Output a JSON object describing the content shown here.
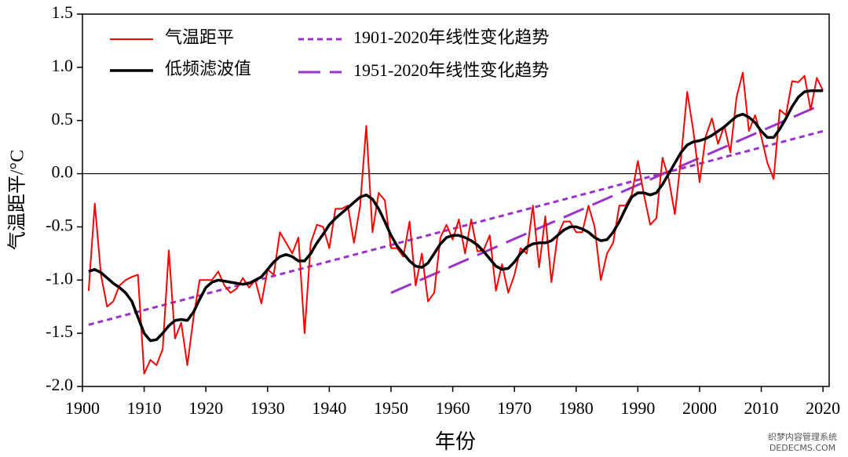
{
  "chart_data": {
    "type": "line",
    "xlabel": "年份",
    "ylabel": "气温距平/°C",
    "xlim": [
      1900,
      2021
    ],
    "ylim": [
      -2.0,
      1.5
    ],
    "xticks": [
      1900,
      1910,
      1920,
      1930,
      1940,
      1950,
      1960,
      1970,
      1980,
      1990,
      2000,
      2010,
      2020
    ],
    "yticks": [
      1.5,
      {
        "value": 1.0,
        "label": "1.0"
      },
      0.5,
      {
        "value": 0.0,
        "label": "0.0"
      },
      -0.5,
      {
        "value": -1.0,
        "label": "-1.0"
      },
      -1.5,
      {
        "value": -2.0,
        "label": "-2.0"
      }
    ],
    "zero_line": true,
    "legend": "upper left",
    "x": [
      1901,
      1902,
      1903,
      1904,
      1905,
      1906,
      1907,
      1908,
      1909,
      1910,
      1911,
      1912,
      1913,
      1914,
      1915,
      1916,
      1917,
      1918,
      1919,
      1920,
      1921,
      1922,
      1923,
      1924,
      1925,
      1926,
      1927,
      1928,
      1929,
      1930,
      1931,
      1932,
      1933,
      1934,
      1935,
      1936,
      1937,
      1938,
      1939,
      1940,
      1941,
      1942,
      1943,
      1944,
      1945,
      1946,
      1947,
      1948,
      1949,
      1950,
      1951,
      1952,
      1953,
      1954,
      1955,
      1956,
      1957,
      1958,
      1959,
      1960,
      1961,
      1962,
      1963,
      1964,
      1965,
      1966,
      1967,
      1968,
      1969,
      1970,
      1971,
      1972,
      1973,
      1974,
      1975,
      1976,
      1977,
      1978,
      1979,
      1980,
      1981,
      1982,
      1983,
      1984,
      1985,
      1986,
      1987,
      1988,
      1989,
      1990,
      1991,
      1992,
      1993,
      1994,
      1995,
      1996,
      1997,
      1998,
      1999,
      2000,
      2001,
      2002,
      2003,
      2004,
      2005,
      2006,
      2007,
      2008,
      2009,
      2010,
      2011,
      2012,
      2013,
      2014,
      2015,
      2016,
      2017,
      2018,
      2019,
      2020
    ],
    "series": [
      {
        "name": "气温距平",
        "color": "#ff0000",
        "width": 2,
        "values": [
          -1.1,
          -0.28,
          -0.95,
          -1.25,
          -1.2,
          -1.05,
          -1.0,
          -0.97,
          -0.95,
          -1.88,
          -1.75,
          -1.8,
          -1.65,
          -0.72,
          -1.55,
          -1.4,
          -1.8,
          -1.35,
          -1.0,
          -1.0,
          -1.0,
          -0.92,
          -1.05,
          -1.12,
          -1.08,
          -0.98,
          -1.07,
          -1.0,
          -1.22,
          -0.9,
          -0.95,
          -0.55,
          -0.65,
          -0.75,
          -0.6,
          -1.5,
          -0.65,
          -0.48,
          -0.5,
          -0.7,
          -0.33,
          -0.33,
          -0.3,
          -0.65,
          -0.3,
          0.45,
          -0.55,
          -0.18,
          -0.25,
          -0.7,
          -0.7,
          -0.78,
          -0.45,
          -1.05,
          -0.75,
          -1.2,
          -1.12,
          -0.6,
          -0.48,
          -0.62,
          -0.43,
          -0.75,
          -0.43,
          -0.73,
          -0.72,
          -0.58,
          -1.1,
          -0.85,
          -1.12,
          -0.95,
          -0.7,
          -0.75,
          -0.3,
          -0.88,
          -0.4,
          -1.02,
          -0.58,
          -0.45,
          -0.45,
          -0.55,
          -0.55,
          -0.3,
          -0.5,
          -1.0,
          -0.75,
          -0.65,
          -0.3,
          -0.3,
          -0.2,
          0.12,
          -0.2,
          -0.48,
          -0.42,
          0.15,
          -0.05,
          -0.38,
          0.15,
          0.77,
          0.4,
          -0.08,
          0.35,
          0.52,
          0.28,
          0.45,
          0.2,
          0.72,
          0.95,
          0.4,
          0.55,
          0.35,
          0.1,
          -0.05,
          0.6,
          0.55,
          0.87,
          0.86,
          0.92,
          0.6,
          0.9,
          0.78
        ]
      },
      {
        "name": "低频滤波值",
        "color": "#000000",
        "width": 3.5,
        "values": [
          -0.92,
          -0.9,
          -0.93,
          -0.98,
          -1.03,
          -1.07,
          -1.12,
          -1.2,
          -1.35,
          -1.5,
          -1.57,
          -1.56,
          -1.5,
          -1.43,
          -1.38,
          -1.37,
          -1.38,
          -1.3,
          -1.18,
          -1.07,
          -1.02,
          -1.0,
          -1.01,
          -1.02,
          -1.03,
          -1.04,
          -1.03,
          -1.0,
          -0.97,
          -0.9,
          -0.83,
          -0.78,
          -0.76,
          -0.78,
          -0.82,
          -0.82,
          -0.75,
          -0.65,
          -0.57,
          -0.48,
          -0.42,
          -0.37,
          -0.32,
          -0.27,
          -0.22,
          -0.2,
          -0.24,
          -0.33,
          -0.45,
          -0.58,
          -0.68,
          -0.75,
          -0.82,
          -0.87,
          -0.88,
          -0.84,
          -0.75,
          -0.66,
          -0.6,
          -0.58,
          -0.58,
          -0.6,
          -0.63,
          -0.67,
          -0.73,
          -0.8,
          -0.87,
          -0.9,
          -0.89,
          -0.83,
          -0.75,
          -0.69,
          -0.66,
          -0.65,
          -0.65,
          -0.63,
          -0.58,
          -0.53,
          -0.5,
          -0.5,
          -0.52,
          -0.55,
          -0.6,
          -0.63,
          -0.62,
          -0.55,
          -0.45,
          -0.33,
          -0.22,
          -0.18,
          -0.18,
          -0.2,
          -0.18,
          -0.1,
          0.0,
          0.1,
          0.2,
          0.27,
          0.3,
          0.31,
          0.33,
          0.36,
          0.4,
          0.44,
          0.49,
          0.54,
          0.56,
          0.53,
          0.48,
          0.4,
          0.34,
          0.34,
          0.42,
          0.52,
          0.63,
          0.72,
          0.77,
          0.78,
          0.78,
          0.78
        ]
      },
      {
        "name": "1901-2020年线性变化趋势",
        "color": "#9933cc",
        "width": 3,
        "dash": "7,5",
        "x": [
          1901,
          2020
        ],
        "values": [
          -1.42,
          0.4
        ]
      },
      {
        "name": "1951-2020年线性变化趋势",
        "color": "#9933cc",
        "width": 3,
        "dash": "28,12",
        "x": [
          1950,
          2019
        ],
        "values": [
          -1.12,
          0.63
        ]
      }
    ]
  },
  "watermark": "织梦内容管理系统",
  "watermark_site": "DEDECMS.COM"
}
